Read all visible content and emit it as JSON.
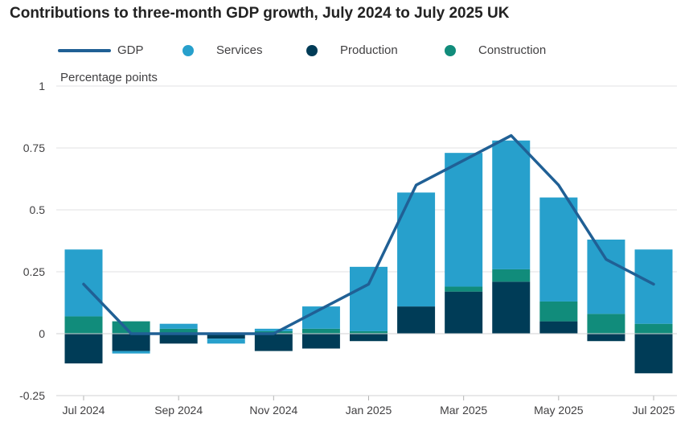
{
  "title": "Contributions to three-month GDP growth, July 2024 to July 2025 UK",
  "legend": [
    {
      "label": "GDP",
      "kind": "line",
      "color": "#206095"
    },
    {
      "label": "Services",
      "kind": "dot",
      "color": "#27a0cc"
    },
    {
      "label": "Production",
      "kind": "dot",
      "color": "#003c57"
    },
    {
      "label": "Construction",
      "kind": "dot",
      "color": "#118c7b"
    }
  ],
  "units_label": "Percentage points",
  "chart_data": {
    "type": "bar",
    "stacked": true,
    "title": "Contributions to three-month GDP growth, July 2024 to July 2025 UK",
    "ylabel": "Percentage points",
    "xlabel": "",
    "ylim": [
      -0.25,
      1
    ],
    "yticks": [
      -0.25,
      0,
      0.25,
      0.5,
      0.75,
      1
    ],
    "ytick_labels": [
      "-0.25",
      "0",
      "0.25",
      "0.5",
      "0.75",
      "1"
    ],
    "grid": true,
    "legend_position": "top",
    "categories": [
      "Jul 2024",
      "Aug 2024",
      "Sep 2024",
      "Oct 2024",
      "Nov 2024",
      "Dec 2024",
      "Jan 2025",
      "Feb 2025",
      "Mar 2025",
      "Apr 2025",
      "May 2025",
      "Jun 2025",
      "Jul 2025"
    ],
    "x_tick_labels": [
      "Jul 2024",
      "",
      "Sep 2024",
      "",
      "Nov 2024",
      "",
      "Jan 2025",
      "",
      "Mar 2025",
      "",
      "May 2025",
      "",
      "Jul 2025"
    ],
    "series": [
      {
        "name": "Production",
        "kind": "bar",
        "color": "#003c57",
        "values": [
          -0.12,
          -0.07,
          -0.04,
          -0.02,
          -0.07,
          -0.06,
          -0.03,
          0.11,
          0.17,
          0.21,
          0.05,
          -0.03,
          -0.16
        ]
      },
      {
        "name": "Construction",
        "kind": "bar",
        "color": "#118c7b",
        "values": [
          0.07,
          0.05,
          0.02,
          0.0,
          0.01,
          0.02,
          0.01,
          0.0,
          0.02,
          0.05,
          0.08,
          0.08,
          0.04
        ]
      },
      {
        "name": "Services",
        "kind": "bar",
        "color": "#27a0cc",
        "values": [
          0.27,
          -0.01,
          0.02,
          -0.02,
          0.01,
          0.09,
          0.26,
          0.46,
          0.54,
          0.52,
          0.42,
          0.3,
          0.3
        ]
      },
      {
        "name": "GDP",
        "kind": "line",
        "color": "#206095",
        "values": [
          0.2,
          0.0,
          0.0,
          0.0,
          0.0,
          0.1,
          0.2,
          0.6,
          0.7,
          0.8,
          0.6,
          0.3,
          0.2
        ]
      }
    ]
  }
}
